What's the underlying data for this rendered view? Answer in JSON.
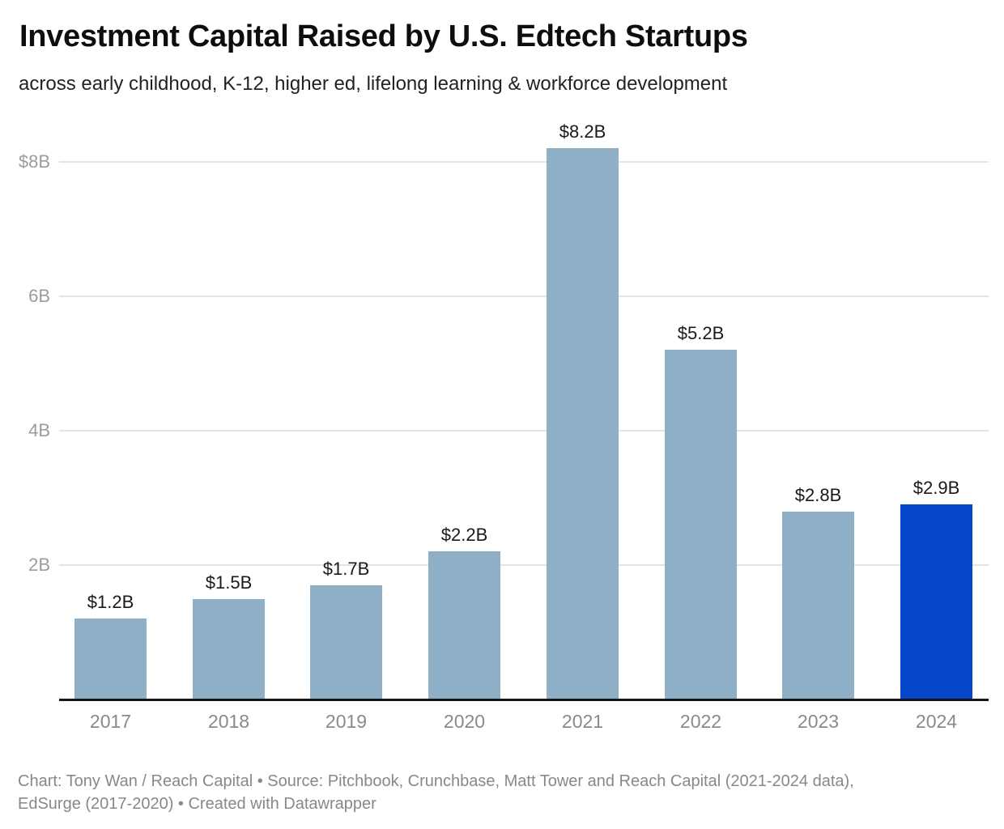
{
  "header": {
    "title": "Investment Capital Raised by U.S. Edtech Startups",
    "subtitle": "across early childhood, K-12, higher ed, lifelong learning & workforce development"
  },
  "chart_data": {
    "type": "bar",
    "title": "Investment Capital Raised by U.S. Edtech Startups",
    "subtitle": "across early childhood, K-12, higher ed, lifelong learning & workforce development",
    "categories": [
      "2017",
      "2018",
      "2019",
      "2020",
      "2021",
      "2022",
      "2023",
      "2024"
    ],
    "values": [
      1.2,
      1.5,
      1.7,
      2.2,
      8.2,
      5.2,
      2.8,
      2.9
    ],
    "value_labels": [
      "$1.2B",
      "$1.5B",
      "$1.7B",
      "$2.2B",
      "$8.2B",
      "$5.2B",
      "$2.8B",
      "$2.9B"
    ],
    "unit": "billions USD",
    "xlabel": "",
    "ylabel": "",
    "ylim": [
      0,
      8.6
    ],
    "grid": true,
    "legend": "none",
    "y_ticks": [
      {
        "value": 8,
        "label": "$8B"
      },
      {
        "value": 6,
        "label": "6B"
      },
      {
        "value": 4,
        "label": "4B"
      },
      {
        "value": 2,
        "label": "2B"
      }
    ],
    "colors": {
      "bar_default": "#8eafc6",
      "bar_highlight": "#0646c8",
      "gridline": "#e4e4e4",
      "axis_line": "#151515"
    },
    "highlight_category": "2024"
  },
  "footer": {
    "line1": "Chart: Tony Wan / Reach Capital • Source: Pitchbook, Crunchbase, Matt Tower and Reach Capital (2021-2024 data),",
    "line2": "EdSurge (2017-2020) • Created with Datawrapper"
  }
}
